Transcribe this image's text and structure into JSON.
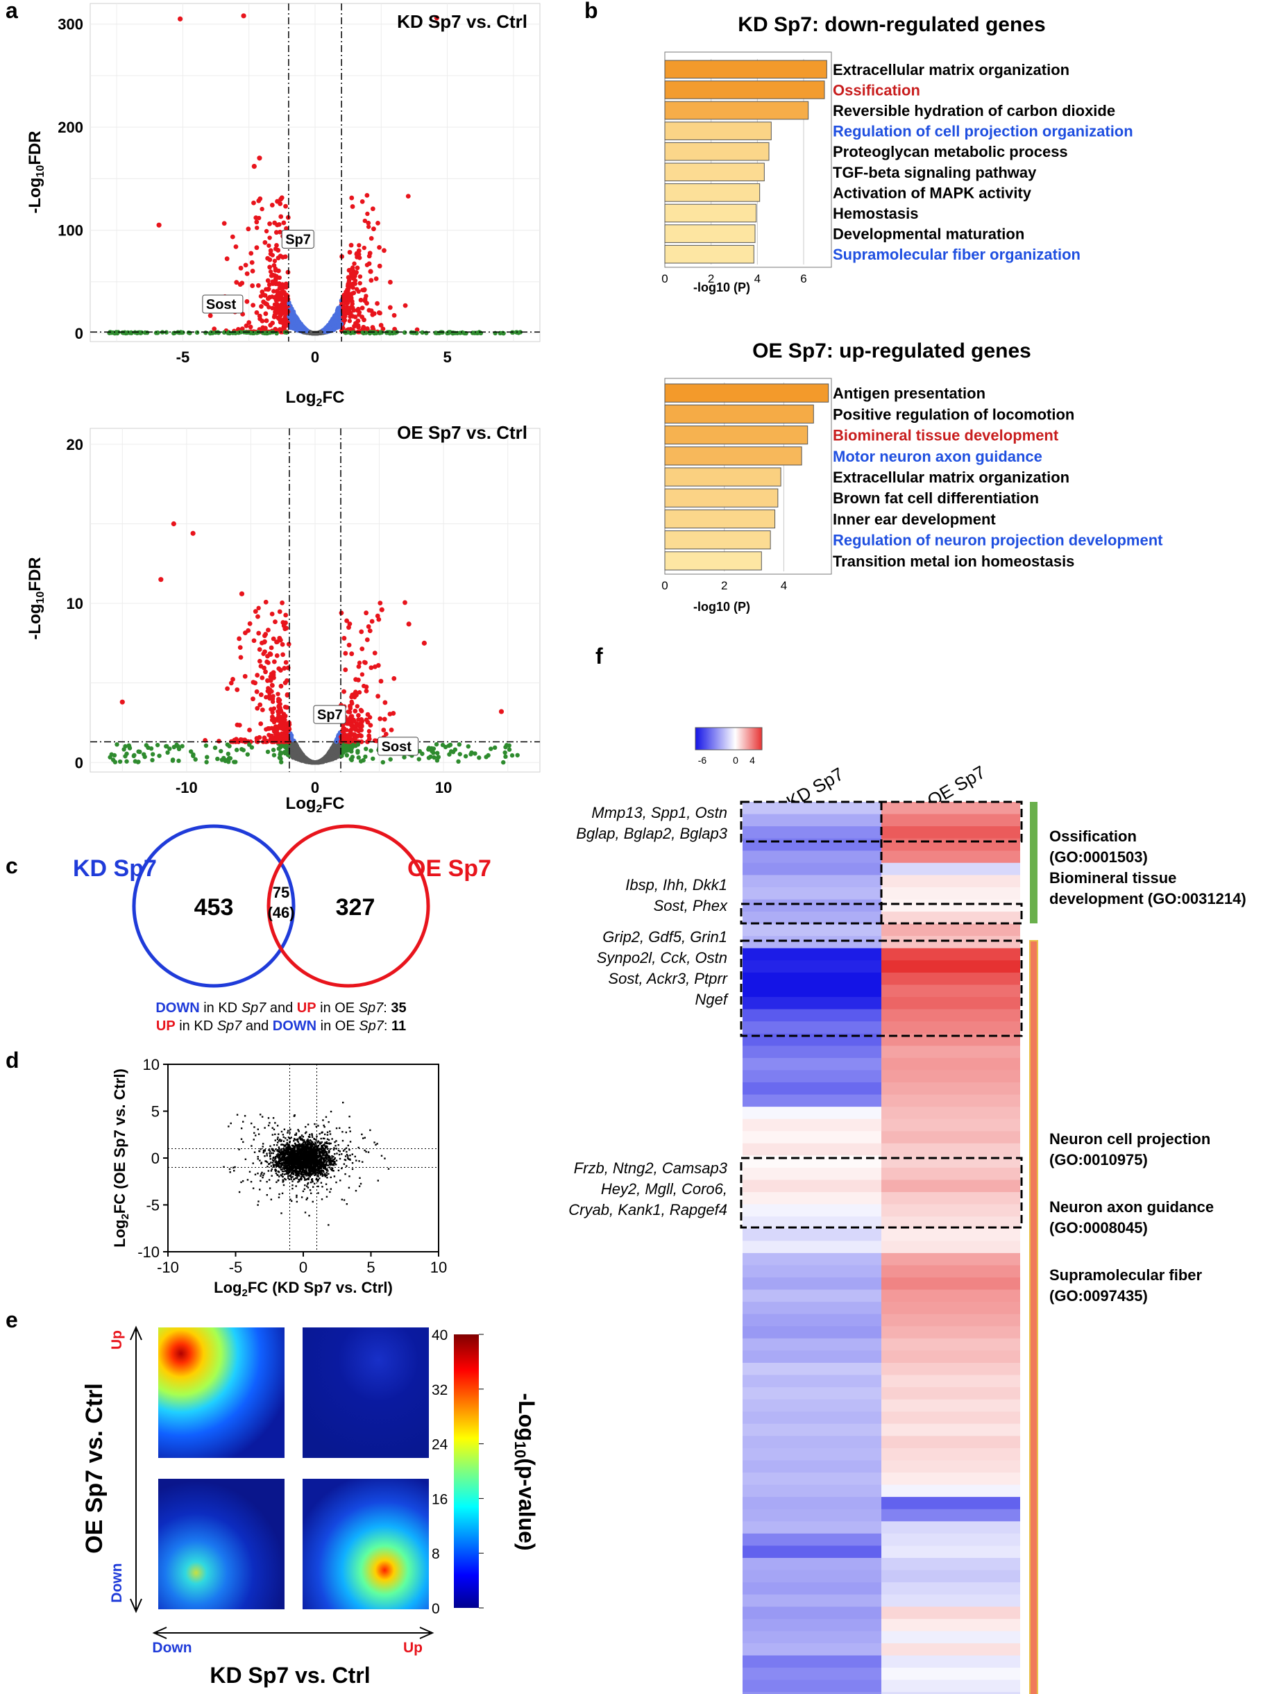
{
  "panel_letters": {
    "a": "a",
    "b": "b",
    "c": "c",
    "d": "d",
    "e": "e",
    "f": "f"
  },
  "colors": {
    "up": "#e8141c",
    "down": "#1f3bd9",
    "blue_pts": "#4a6fe0",
    "green_pts": "#2e8b2e",
    "grey_pts": "#5a5a5a",
    "bar_dark": "#f39a2b",
    "bar_light": "#fde6a3",
    "red_text": "#c81e1e",
    "blue_text": "#1f4fe0",
    "go_green": "#6ab04c",
    "go_orange": "#f07a5a"
  },
  "chart_data": [
    {
      "id": "volcano_kd",
      "type": "scatter",
      "title": "KD Sp7 vs. Ctrl",
      "xlabel": "Log2FC",
      "ylabel": "-Log10FDR",
      "xlim": [
        -8.5,
        8.5
      ],
      "ylim": [
        -8,
        320
      ],
      "xticks": [
        -5,
        0,
        5
      ],
      "yticks": [
        0,
        100,
        200,
        300
      ],
      "thresholds": {
        "fc": [
          -1,
          1
        ],
        "fdr": 1.3
      },
      "labels": [
        {
          "text": "Sp7",
          "x": -1.2,
          "y": 88
        },
        {
          "text": "Sost",
          "x": -4.2,
          "y": 25
        }
      ],
      "highlight_points": [
        {
          "x": -5.1,
          "y": 305
        },
        {
          "x": -2.7,
          "y": 308
        },
        {
          "x": 4.6,
          "y": 306
        },
        {
          "x": -2.3,
          "y": 162
        },
        {
          "x": -2.1,
          "y": 170
        },
        {
          "x": -5.9,
          "y": 105
        },
        {
          "x": 2.1,
          "y": 60
        }
      ]
    },
    {
      "id": "volcano_oe",
      "type": "scatter",
      "title": "OE Sp7 vs. Ctrl",
      "xlabel": "Log2FC",
      "ylabel": "-Log10FDR",
      "xlim": [
        -17.5,
        17.5
      ],
      "ylim": [
        -0.6,
        21
      ],
      "xticks": [
        -10,
        0,
        10
      ],
      "yticks": [
        0,
        10,
        20
      ],
      "thresholds": {
        "fc": [
          -2,
          2
        ],
        "fdr": 1.3
      },
      "labels": [
        {
          "text": "Sp7",
          "x": 0,
          "y": 2.8
        },
        {
          "text": "Sost",
          "x": 5,
          "y": 0.8
        }
      ],
      "highlight_points": [
        {
          "x": -11,
          "y": 15
        },
        {
          "x": -9.5,
          "y": 14.4
        },
        {
          "x": -12,
          "y": 11.5
        },
        {
          "x": -5.7,
          "y": 10.6
        },
        {
          "x": 5.2,
          "y": 9.6
        },
        {
          "x": 7.3,
          "y": 8.7
        },
        {
          "x": 8.5,
          "y": 7.5
        },
        {
          "x": -15,
          "y": 3.8
        },
        {
          "x": 14.5,
          "y": 3.2
        }
      ]
    },
    {
      "id": "go_kd_down",
      "type": "bar",
      "orientation": "horizontal",
      "title": "KD Sp7: down-regulated genes",
      "xlabel": "-log10 (P)",
      "xlim": [
        0,
        7.2
      ],
      "xticks": [
        0,
        2,
        4,
        6
      ],
      "categories": [
        "Extracellular matrix organization",
        "Ossification",
        "Reversible hydration of carbon dioxide",
        "Regulation of cell projection organization",
        "Proteoglycan metabolic process",
        "TGF-beta signaling pathway",
        "Activation of MAPK activity",
        "Hemostasis",
        "Developmental maturation",
        "Supramolecular fiber organization"
      ],
      "values": [
        7.0,
        6.9,
        6.2,
        4.6,
        4.5,
        4.3,
        4.1,
        3.95,
        3.9,
        3.85
      ],
      "label_colors": [
        "black",
        "red",
        "black",
        "blue",
        "black",
        "black",
        "black",
        "black",
        "black",
        "blue"
      ]
    },
    {
      "id": "go_oe_up",
      "type": "bar",
      "orientation": "horizontal",
      "title": "OE Sp7: up-regulated genes",
      "xlabel": "-log10 (P)",
      "xlim": [
        0,
        5.6
      ],
      "xticks": [
        0,
        2,
        4
      ],
      "categories": [
        "Antigen presentation",
        "Positive regulation of locomotion",
        "Biomineral tissue development",
        "Motor neuron axon guidance",
        "Extracellular matrix organization",
        "Brown fat cell differentiation",
        "Inner ear development",
        "Regulation of neuron projection development",
        "Transition metal ion homeostasis"
      ],
      "values": [
        5.5,
        5.0,
        4.8,
        4.6,
        3.9,
        3.8,
        3.7,
        3.55,
        3.25
      ],
      "label_colors": [
        "black",
        "black",
        "red",
        "blue",
        "black",
        "black",
        "black",
        "blue",
        "black"
      ]
    },
    {
      "id": "venn",
      "type": "venn",
      "sets": [
        "KD Sp7",
        "OE Sp7"
      ],
      "only_a": "453",
      "overlap": "75",
      "overlap_sub": "(46)",
      "only_b": "327"
    },
    {
      "id": "scatter_fc",
      "type": "scatter",
      "xlabel": "Log2FC (KD Sp7 vs. Ctrl)",
      "ylabel": "Log2FC (OE Sp7 vs. Ctrl)",
      "xlim": [
        -10,
        10
      ],
      "ylim": [
        -10,
        10
      ],
      "xticks": [
        -10,
        -5,
        0,
        5,
        10
      ],
      "yticks": [
        -10,
        -5,
        0,
        5,
        10
      ],
      "guides": [
        -1,
        1
      ]
    },
    {
      "id": "rrho",
      "type": "heatmap",
      "ylabel": "OE Sp7 vs. Ctrl",
      "xlabel": "KD Sp7 vs. Ctrl",
      "colorbar_label": "-Log10(p-value)",
      "colorbar_ticks": [
        0,
        8,
        16,
        24,
        32,
        40
      ],
      "axis_ends": {
        "x_low": "Down",
        "x_high": "Up",
        "y_low": "Down",
        "y_high": "Up"
      },
      "hotspots": [
        {
          "quadrant": "top-left",
          "peak": 40
        },
        {
          "quadrant": "bottom-right",
          "peak": 30
        },
        {
          "quadrant": "bottom-left",
          "peak": 20
        },
        {
          "quadrant": "top-right",
          "peak": 2
        }
      ]
    },
    {
      "id": "gene_heatmap",
      "type": "heatmap",
      "columns": [
        "KD Sp7",
        "OE Sp7"
      ],
      "color_scale": {
        "min": -6,
        "max": 4,
        "ticks": [
          "-6",
          "0",
          "4"
        ]
      },
      "rows_kd": [
        -1.5,
        -2.2,
        -3.0,
        -3.4,
        -2.6,
        -2.8,
        -2.0,
        -1.8,
        -2.4,
        -2.1,
        -1.6,
        -2.0,
        -5.8,
        -5.6,
        -6.0,
        -6.0,
        -5.5,
        -4.2,
        -3.6,
        -4.0,
        -3.5,
        -3.0,
        -3.3,
        -3.8,
        -3.2,
        -0.2,
        0.4,
        0.2,
        0.5,
        0.1,
        0.3,
        0.6,
        0.3,
        -0.3,
        -0.6,
        -1.0,
        -0.5,
        -1.8,
        -2.0,
        -2.3,
        -1.7,
        -2.1,
        -2.4,
        -2.6,
        -2.0,
        -2.2,
        -1.4,
        -1.8,
        -1.5,
        -1.7,
        -1.9,
        -1.6,
        -1.9,
        -1.8,
        -2.0,
        -1.7,
        -1.9,
        -2.2,
        -2.1,
        -1.9,
        -3.2,
        -4.0,
        -2.2,
        -2.3,
        -2.5,
        -2.1,
        -2.6,
        -2.4,
        -2.2,
        -2.0,
        -3.4,
        -3.0,
        -3.2,
        -2.8,
        -3.6,
        -3.1,
        -2.9,
        -2.7
      ],
      "rows_oe": [
        2.0,
        2.6,
        3.2,
        2.8,
        2.4,
        -1.0,
        0.5,
        0.3,
        0.2,
        0.8,
        1.6,
        1.2,
        3.6,
        4.0,
        3.3,
        2.8,
        3.0,
        2.6,
        2.4,
        2.2,
        1.8,
        2.0,
        1.9,
        1.7,
        1.5,
        1.3,
        1.2,
        1.4,
        1.0,
        0.9,
        1.2,
        1.6,
        1.0,
        0.8,
        0.6,
        0.4,
        0.5,
        1.8,
        2.1,
        2.4,
        2.0,
        1.9,
        1.7,
        1.5,
        1.2,
        1.3,
        1.0,
        0.7,
        0.9,
        0.6,
        0.8,
        0.5,
        0.9,
        0.7,
        0.6,
        0.4,
        -0.3,
        -4.0,
        -3.2,
        -1.0,
        -0.8,
        -0.6,
        -1.2,
        -1.4,
        -1.0,
        -0.8,
        0.8,
        0.4,
        -0.4,
        0.6,
        -0.6,
        -0.2,
        -0.5,
        -0.9,
        -0.3,
        -0.6,
        -0.8,
        -0.4
      ]
    }
  ],
  "venn_text": {
    "line1": {
      "a": "DOWN",
      "b": " in KD ",
      "c": "Sp7",
      "d": " and ",
      "e": "UP",
      "f": " in OE ",
      "g": "Sp7",
      "h": ": ",
      "n": "35"
    },
    "line2": {
      "a": "UP",
      "b": " in KD ",
      "c": "Sp7",
      "d": " and ",
      "e": "DOWN",
      "f": " in OE ",
      "g": "Sp7",
      "h": ": ",
      "n": "11"
    }
  },
  "gene_groups": [
    {
      "lines": [
        "Mmp13, Spp1, Ostn",
        "Bglap, Bglap2, Bglap3"
      ]
    },
    {
      "lines": [
        "Ibsp, Ihh, Dkk1",
        "Sost, Phex"
      ]
    },
    {
      "lines": [
        "Grip2, Gdf5, Grin1",
        "Synpo2l, Cck, Ostn",
        "Sost, Ackr3, Ptprr",
        "Ngef"
      ]
    },
    {
      "lines": [
        "Frzb, Ntng2, Camsap3",
        "Hey2, Mgll, Coro6,",
        "Cryab, Kank1, Rapgef4"
      ]
    }
  ],
  "go_terms": [
    {
      "name": "Ossification",
      "id": "(GO:0001503)"
    },
    {
      "name": "Biomineral tissue",
      "id": "development (GO:0031214)"
    },
    {
      "name": "Neuron cell projection",
      "id": "(GO:0010975)"
    },
    {
      "name": "Neuron axon guidance",
      "id": "(GO:0008045)"
    },
    {
      "name": "Supramolecular fiber",
      "id": "(GO:0097435)"
    }
  ]
}
